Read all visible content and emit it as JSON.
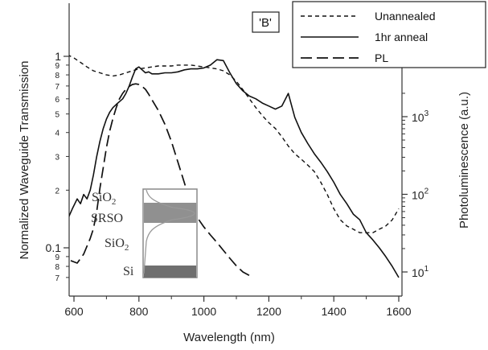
{
  "chart_data": {
    "type": "line",
    "title": "",
    "panel_label": "'B'",
    "xlabel": "Wavelength (nm)",
    "ylabel_left": "Normalized Waveguide Transmission",
    "ylabel_right": "Photoluminescence (a.u.)",
    "xlim": [
      580,
      1620
    ],
    "ylim_left": [
      0.065,
      1.6
    ],
    "ylim_right": [
      8,
      2900
    ],
    "left_scale": "log",
    "right_scale": "log",
    "grid": false,
    "legend_position": "top-right",
    "x_ticks": [
      600,
      800,
      1000,
      1200,
      1400,
      1600
    ],
    "x_tick_labels": [
      "600",
      "800",
      "1000",
      "1200",
      "1400",
      "1600"
    ],
    "left_major_ticks": [
      1,
      0.1
    ],
    "left_major_labels": [
      "1",
      "0.1"
    ],
    "left_minor_ticks": [
      0.9,
      0.8,
      0.7,
      0.6,
      0.5,
      0.4,
      0.3,
      0.2,
      0.09,
      0.08,
      0.07
    ],
    "left_minor_labels": [
      "9",
      "8",
      "7",
      "6",
      "5",
      "4",
      "3",
      "2",
      "9",
      "8",
      "7"
    ],
    "right_ticks": [
      1000,
      100,
      10
    ],
    "right_tick_labels": [
      {
        "base": "10",
        "exp": "3"
      },
      {
        "base": "10",
        "exp": "2"
      },
      {
        "base": "10",
        "exp": "1"
      }
    ],
    "series": [
      {
        "name": "Unannealed",
        "style": "short-dash",
        "axis": "left",
        "x": [
          580,
          600,
          620,
          640,
          660,
          680,
          700,
          720,
          740,
          760,
          780,
          800,
          820,
          840,
          860,
          880,
          900,
          920,
          940,
          960,
          980,
          1000,
          1020,
          1040,
          1060,
          1080,
          1100,
          1120,
          1140,
          1160,
          1180,
          1200,
          1220,
          1240,
          1260,
          1280,
          1300,
          1320,
          1340,
          1360,
          1380,
          1400,
          1420,
          1440,
          1460,
          1480,
          1500,
          1520,
          1540,
          1560,
          1580,
          1600
        ],
        "y": [
          1.02,
          0.98,
          0.93,
          0.88,
          0.84,
          0.82,
          0.8,
          0.79,
          0.8,
          0.82,
          0.84,
          0.86,
          0.87,
          0.88,
          0.89,
          0.89,
          0.89,
          0.9,
          0.9,
          0.9,
          0.89,
          0.88,
          0.87,
          0.86,
          0.84,
          0.8,
          0.74,
          0.67,
          0.6,
          0.54,
          0.49,
          0.45,
          0.42,
          0.38,
          0.34,
          0.31,
          0.29,
          0.27,
          0.25,
          0.22,
          0.19,
          0.16,
          0.14,
          0.13,
          0.125,
          0.12,
          0.12,
          0.12,
          0.125,
          0.13,
          0.14,
          0.16
        ]
      },
      {
        "name": "1hr anneal",
        "style": "solid",
        "axis": "left",
        "x": [
          580,
          595,
          610,
          620,
          630,
          640,
          650,
          660,
          670,
          680,
          690,
          700,
          710,
          720,
          730,
          740,
          750,
          760,
          770,
          780,
          790,
          800,
          810,
          820,
          830,
          840,
          860,
          880,
          900,
          920,
          940,
          960,
          980,
          1000,
          1020,
          1040,
          1060,
          1080,
          1100,
          1120,
          1140,
          1160,
          1180,
          1200,
          1220,
          1240,
          1260,
          1280,
          1300,
          1320,
          1340,
          1360,
          1380,
          1400,
          1420,
          1440,
          1460,
          1480,
          1500,
          1520,
          1540,
          1560,
          1580,
          1600
        ],
        "y": [
          0.14,
          0.16,
          0.18,
          0.17,
          0.19,
          0.18,
          0.2,
          0.24,
          0.3,
          0.36,
          0.42,
          0.47,
          0.51,
          0.54,
          0.56,
          0.58,
          0.6,
          0.64,
          0.7,
          0.78,
          0.86,
          0.88,
          0.85,
          0.82,
          0.83,
          0.81,
          0.81,
          0.82,
          0.82,
          0.83,
          0.85,
          0.86,
          0.86,
          0.87,
          0.9,
          0.96,
          0.95,
          0.82,
          0.72,
          0.66,
          0.62,
          0.6,
          0.57,
          0.55,
          0.53,
          0.55,
          0.64,
          0.48,
          0.4,
          0.35,
          0.31,
          0.28,
          0.25,
          0.22,
          0.19,
          0.17,
          0.15,
          0.14,
          0.12,
          0.11,
          0.1,
          0.09,
          0.08,
          0.07
        ]
      },
      {
        "name": "PL",
        "style": "long-dash",
        "axis": "right",
        "x": [
          590,
          610,
          630,
          650,
          660,
          670,
          680,
          690,
          700,
          710,
          720,
          730,
          740,
          750,
          760,
          770,
          780,
          790,
          800,
          810,
          820,
          830,
          840,
          860,
          880,
          900,
          920,
          940,
          960,
          980,
          1000,
          1020,
          1040,
          1060,
          1080,
          1100,
          1120,
          1140
        ],
        "y": [
          14,
          13,
          17,
          27,
          36,
          60,
          120,
          220,
          400,
          650,
          950,
          1300,
          1700,
          2000,
          2250,
          2450,
          2600,
          2650,
          2600,
          2450,
          2250,
          1950,
          1650,
          1200,
          800,
          480,
          260,
          140,
          75,
          50,
          38,
          30,
          24,
          19,
          15,
          12,
          10,
          9
        ]
      }
    ]
  },
  "inset": {
    "labels": [
      "SiO2",
      "SRSO",
      "SiO2",
      "Si"
    ],
    "colors": {
      "srso_band": "#7d7d7d",
      "si_band": "#6f6f6f",
      "profile": "#999999",
      "frame": "#8a8a8a"
    }
  }
}
